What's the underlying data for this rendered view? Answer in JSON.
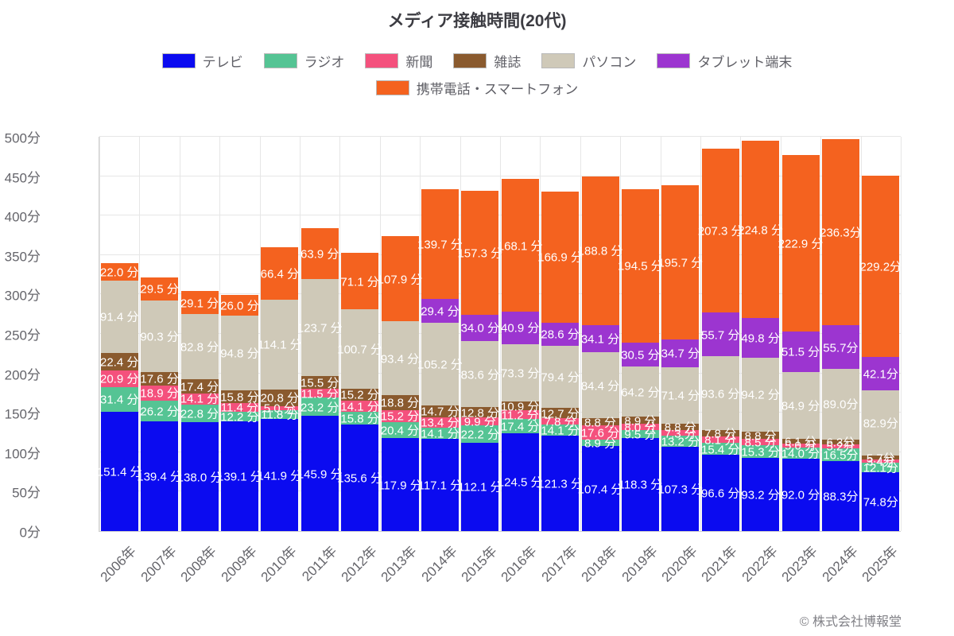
{
  "title": "メディア接触時間(20代)",
  "footer": {
    "copyright": "© 株式会社博報堂"
  },
  "y_axis": {
    "ticks": [
      "0分",
      "50分",
      "100分",
      "150分",
      "200分",
      "250分",
      "300分",
      "350分",
      "400分",
      "450分",
      "500分"
    ],
    "min": 0,
    "max": 500,
    "step": 50
  },
  "x_axis": {
    "labels": [
      "2006年",
      "2007年",
      "2008年",
      "2009年",
      "2010年",
      "2011年",
      "2012年",
      "2013年",
      "2014年",
      "2015年",
      "2016年",
      "2017年",
      "2018年",
      "2019年",
      "2020年",
      "2021年",
      "2022年",
      "2023年",
      "2024年",
      "2025年"
    ]
  },
  "legend_rows": [
    [
      0,
      1,
      2,
      3,
      4,
      5
    ],
    [
      6
    ]
  ],
  "chart_data": {
    "type": "bar",
    "stacked": true,
    "title": "メディア接触時間(20代)",
    "unit": "分",
    "ylim": [
      0,
      500
    ],
    "grid": true,
    "legend_position": "top",
    "categories": [
      "2006年",
      "2007年",
      "2008年",
      "2009年",
      "2010年",
      "2011年",
      "2012年",
      "2013年",
      "2014年",
      "2015年",
      "2016年",
      "2017年",
      "2018年",
      "2019年",
      "2020年",
      "2021年",
      "2022年",
      "2023年",
      "2024年",
      "2025年"
    ],
    "label_suffixes": [
      " 分",
      " 分",
      " 分",
      " 分",
      " 分",
      " 分",
      " 分",
      " 分",
      " 分",
      " 分",
      " 分",
      " 分",
      " 分",
      " 分",
      " 分",
      " 分",
      " 分",
      " 分",
      "分",
      "分"
    ],
    "series": [
      {
        "name": "テレビ",
        "color": "#0b0bf0",
        "values": [
          151.4,
          139.4,
          138.0,
          139.1,
          141.9,
          145.9,
          135.6,
          117.9,
          117.1,
          112.1,
          124.5,
          121.3,
          107.4,
          118.3,
          107.3,
          96.6,
          93.2,
          92.0,
          88.3,
          74.8
        ]
      },
      {
        "name": "ラジオ",
        "color": "#55c494",
        "values": [
          31.4,
          26.2,
          22.8,
          12.2,
          11.8,
          23.2,
          15.8,
          20.4,
          14.1,
          22.2,
          17.4,
          14.1,
          8.9,
          9.5,
          13.2,
          15.4,
          15.3,
          14.0,
          16.5,
          12.1
        ]
      },
      {
        "name": "新聞",
        "color": "#f4517d",
        "values": [
          20.9,
          18.9,
          14.1,
          11.4,
          5.0,
          11.5,
          14.1,
          15.2,
          13.4,
          9.9,
          11.2,
          7.8,
          17.6,
          8.0,
          7.3,
          8.1,
          8.5,
          5.0,
          5.2,
          3.4
        ]
      },
      {
        "name": "雑誌",
        "color": "#8a5a2e",
        "values": [
          22.4,
          17.6,
          17.4,
          15.8,
          20.8,
          15.5,
          15.2,
          18.8,
          14.7,
          12.8,
          10.9,
          12.7,
          8.8,
          8.9,
          8.8,
          7.8,
          8.8,
          6.1,
          6.3,
          5.7
        ]
      },
      {
        "name": "パソコン",
        "color": "#cfc9b8",
        "values": [
          91.4,
          90.3,
          82.8,
          94.8,
          114.1,
          123.7,
          100.7,
          93.4,
          105.2,
          83.6,
          73.3,
          79.4,
          84.4,
          64.2,
          71.4,
          93.6,
          94.2,
          84.9,
          89.0,
          82.9
        ]
      },
      {
        "name": "タブレット端末",
        "color": "#9c35d0",
        "values": [
          0,
          0,
          0,
          0,
          0,
          0,
          0,
          0,
          29.4,
          34.0,
          40.9,
          28.6,
          34.1,
          30.5,
          34.7,
          55.7,
          49.8,
          51.5,
          55.7,
          42.1
        ]
      },
      {
        "name": "携帯電話・スマートフォン",
        "color": "#f4621f",
        "values": [
          22.0,
          29.5,
          29.1,
          26.0,
          66.4,
          63.9,
          71.1,
          107.9,
          139.7,
          157.3,
          168.1,
          166.9,
          188.8,
          194.5,
          195.7,
          207.3,
          224.8,
          222.9,
          236.3,
          229.2
        ]
      }
    ]
  }
}
